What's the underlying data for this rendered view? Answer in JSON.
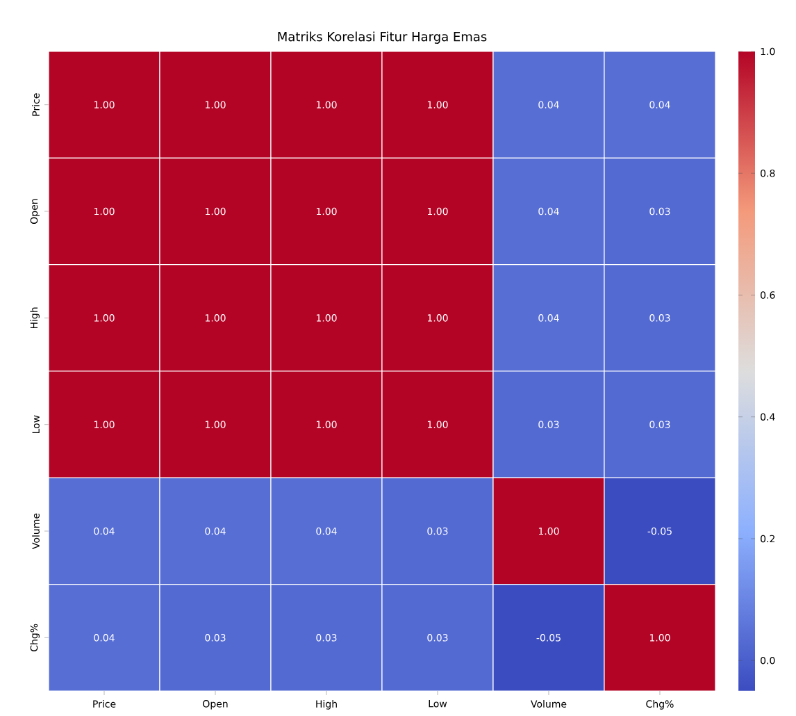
{
  "chart_data": {
    "type": "heatmap",
    "title": "Matriks Korelasi Fitur Harga Emas",
    "categories": [
      "Price",
      "Open",
      "High",
      "Low",
      "Volume",
      "Chg%"
    ],
    "y_categories": [
      "Price",
      "Open",
      "High",
      "Low",
      "Volume",
      "Chg%"
    ],
    "cells": [
      [
        1.0,
        1.0,
        1.0,
        1.0,
        0.04,
        0.04
      ],
      [
        1.0,
        1.0,
        1.0,
        1.0,
        0.04,
        0.03
      ],
      [
        1.0,
        1.0,
        1.0,
        1.0,
        0.04,
        0.03
      ],
      [
        1.0,
        1.0,
        1.0,
        1.0,
        0.03,
        0.03
      ],
      [
        0.04,
        0.04,
        0.04,
        0.03,
        1.0,
        -0.05
      ],
      [
        0.04,
        0.03,
        0.03,
        0.03,
        -0.05,
        1.0
      ]
    ],
    "cell_labels": [
      [
        "1.00",
        "1.00",
        "1.00",
        "1.00",
        "0.04",
        "0.04"
      ],
      [
        "1.00",
        "1.00",
        "1.00",
        "1.00",
        "0.04",
        "0.03"
      ],
      [
        "1.00",
        "1.00",
        "1.00",
        "1.00",
        "0.04",
        "0.03"
      ],
      [
        "1.00",
        "1.00",
        "1.00",
        "1.00",
        "0.03",
        "0.03"
      ],
      [
        "0.04",
        "0.04",
        "0.04",
        "0.03",
        "1.00",
        "-0.05"
      ],
      [
        "0.04",
        "0.03",
        "0.03",
        "0.03",
        "-0.05",
        "1.00"
      ]
    ],
    "clim": [
      -0.05,
      1.0
    ],
    "cticks": [
      {
        "value": 0,
        "label": "0.0"
      },
      0.2,
      0.4,
      0.6,
      0.8,
      {
        "value": 1,
        "label": "1.0"
      }
    ]
  }
}
